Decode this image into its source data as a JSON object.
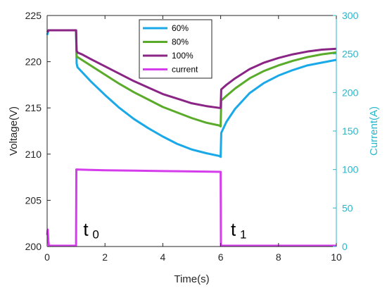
{
  "chart_data": {
    "type": "line",
    "xlabel": "Time(s)",
    "ylabel": "Voltage(V)",
    "y2label": "Current(A)",
    "xlim": [
      0,
      10
    ],
    "ylim": [
      200,
      225
    ],
    "y2lim": [
      0,
      300
    ],
    "xticks": [
      "0",
      "2",
      "4",
      "6",
      "8",
      "10"
    ],
    "yticks": [
      "200",
      "205",
      "210",
      "215",
      "220",
      "225"
    ],
    "y2ticks": [
      "0",
      "50",
      "100",
      "150",
      "200",
      "250",
      "300"
    ],
    "grid": false,
    "legend_position": "top-center",
    "series": [
      {
        "name": "60%",
        "axis": "left",
        "color": "#19a8e8",
        "x": [
          0,
          0.05,
          0.1,
          1.0,
          1.02,
          1.05,
          1.2,
          1.5,
          2,
          2.5,
          3,
          3.5,
          4,
          4.5,
          5,
          5.5,
          5.95,
          6.0,
          6.02,
          6.2,
          6.5,
          7,
          7.5,
          8,
          8.5,
          9,
          9.5,
          10
        ],
        "y": [
          222.9,
          223.4,
          223.4,
          223.4,
          219.8,
          219.4,
          218.9,
          217.9,
          216.4,
          215.0,
          213.8,
          212.8,
          211.9,
          211.1,
          210.5,
          210.1,
          209.8,
          209.7,
          212.3,
          213.5,
          214.9,
          216.6,
          217.7,
          218.5,
          219.1,
          219.6,
          219.9,
          220.2
        ]
      },
      {
        "name": "80%",
        "axis": "left",
        "color": "#5aab2a",
        "x": [
          0,
          0.05,
          0.1,
          1.0,
          1.02,
          1.05,
          1.2,
          1.5,
          2,
          2.5,
          3,
          3.5,
          4,
          4.5,
          5,
          5.5,
          5.95,
          6.0,
          6.02,
          6.2,
          6.5,
          7,
          7.5,
          8,
          8.5,
          9,
          9.5,
          10
        ],
        "y": [
          223.3,
          223.4,
          223.4,
          223.4,
          220.5,
          220.5,
          220.2,
          219.6,
          218.6,
          217.6,
          216.7,
          215.9,
          215.1,
          214.5,
          213.9,
          213.4,
          213.1,
          213.0,
          215.8,
          216.3,
          217.1,
          218.2,
          219.0,
          219.6,
          220.1,
          220.5,
          220.8,
          221.0
        ]
      },
      {
        "name": "100%",
        "axis": "left",
        "color": "#8a2586",
        "x": [
          0,
          0.05,
          0.1,
          1.0,
          1.02,
          1.05,
          1.2,
          1.5,
          2,
          2.5,
          3,
          3.5,
          4,
          4.5,
          5,
          5.5,
          5.95,
          6.0,
          6.02,
          6.2,
          6.5,
          7,
          7.5,
          8,
          8.5,
          9,
          9.5,
          10
        ],
        "y": [
          223.2,
          223.4,
          223.4,
          223.4,
          221.2,
          221.0,
          220.8,
          220.3,
          219.5,
          218.7,
          217.9,
          217.2,
          216.5,
          216.0,
          215.5,
          215.2,
          215.0,
          215.0,
          217.0,
          217.5,
          218.2,
          219.2,
          219.9,
          220.4,
          220.8,
          221.1,
          221.3,
          221.4
        ]
      },
      {
        "name": "current",
        "axis": "right",
        "color": "#d53cec",
        "x": [
          0,
          0.02,
          0.04,
          0.06,
          1.0,
          1.01,
          1.5,
          2,
          3,
          4,
          5,
          6.0,
          6.01,
          7,
          8,
          9,
          10
        ],
        "y": [
          15,
          22,
          8,
          1,
          1,
          100,
          99.5,
          99,
          98.5,
          98,
          97.5,
          97,
          1,
          1,
          1,
          1,
          1
        ]
      }
    ],
    "annotations": [
      {
        "text": "t",
        "sub": "0",
        "x": 1.25,
        "y": 201.2
      },
      {
        "text": "t",
        "sub": "1",
        "x": 6.35,
        "y": 201.2
      }
    ]
  }
}
